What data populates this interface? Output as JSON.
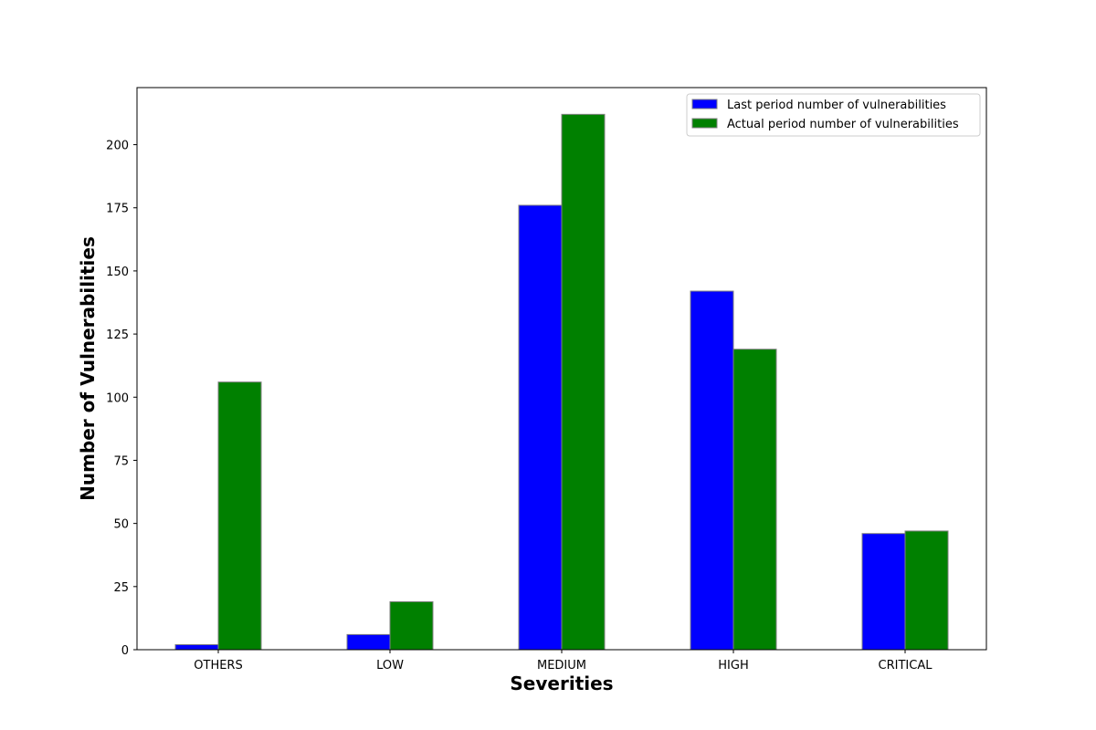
{
  "chart_data": {
    "type": "bar",
    "title": "",
    "xlabel": "Severities",
    "ylabel": "Number of Vulnerabilities",
    "categories": [
      "OTHERS",
      "LOW",
      "MEDIUM",
      "HIGH",
      "CRITICAL"
    ],
    "series": [
      {
        "name": "Last period number of vulnerabilities",
        "color": "#0000ff",
        "values": [
          2,
          6,
          176,
          142,
          46
        ]
      },
      {
        "name": "Actual period number of vulnerabilities",
        "color": "#008000",
        "values": [
          106,
          19,
          212,
          119,
          47
        ]
      }
    ],
    "ylim": [
      0,
      222.6
    ],
    "yticks": [
      0,
      25,
      50,
      75,
      100,
      125,
      150,
      175,
      200
    ],
    "grid": false,
    "legend_position": "top-right",
    "bar_edge_color": "#808080"
  }
}
